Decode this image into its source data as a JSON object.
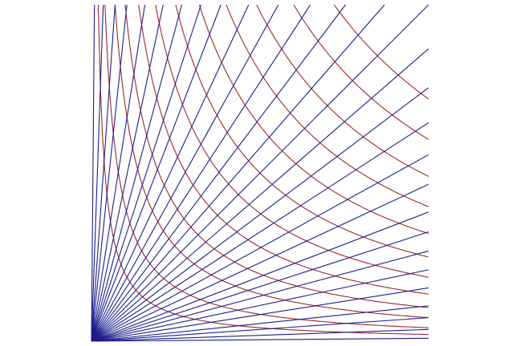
{
  "diagram": {
    "title": "",
    "description_visible_text": "",
    "colors": {
      "red_family": "#a0262a",
      "blue_family": "#1c1e8c",
      "background": "#ffffff"
    },
    "families": [
      {
        "name": "",
        "kind": "hyperbolas",
        "equation_form": "x*y = c",
        "color_key": "red_family",
        "c_values": [
          0.02,
          0.04,
          0.07,
          0.1,
          0.14,
          0.19,
          0.25,
          0.32,
          0.4,
          0.49,
          0.6,
          0.72
        ]
      },
      {
        "name": "",
        "kind": "rays",
        "equation_form": "y = m*x",
        "color_key": "blue_family",
        "angles_deg": [
          0.5,
          2,
          4,
          6,
          9,
          12,
          15,
          18,
          21,
          25,
          29,
          33,
          37,
          41,
          45,
          49,
          53,
          57,
          61,
          65,
          69,
          72,
          75,
          78,
          81,
          84,
          86,
          88,
          89.5
        ]
      }
    ],
    "domain": {
      "x": [
        0,
        1
      ],
      "y": [
        0,
        1
      ]
    }
  }
}
